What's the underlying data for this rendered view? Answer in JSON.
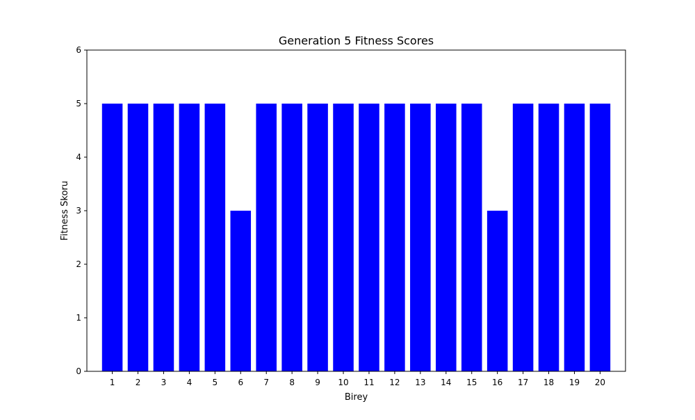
{
  "chart_data": {
    "type": "bar",
    "title": "Generation 5 Fitness Scores",
    "xlabel": "Birey",
    "ylabel": "Fitness Skoru",
    "categories": [
      "1",
      "2",
      "3",
      "4",
      "5",
      "6",
      "7",
      "8",
      "9",
      "10",
      "11",
      "12",
      "13",
      "14",
      "15",
      "16",
      "17",
      "18",
      "19",
      "20"
    ],
    "values": [
      5,
      5,
      5,
      5,
      5,
      3,
      5,
      5,
      5,
      5,
      5,
      5,
      5,
      5,
      5,
      3,
      5,
      5,
      5,
      5
    ],
    "ylim": [
      0,
      6
    ],
    "yticks": [
      0,
      1,
      2,
      3,
      4,
      5,
      6
    ],
    "grid": false,
    "bar_color": "#0000ff"
  }
}
